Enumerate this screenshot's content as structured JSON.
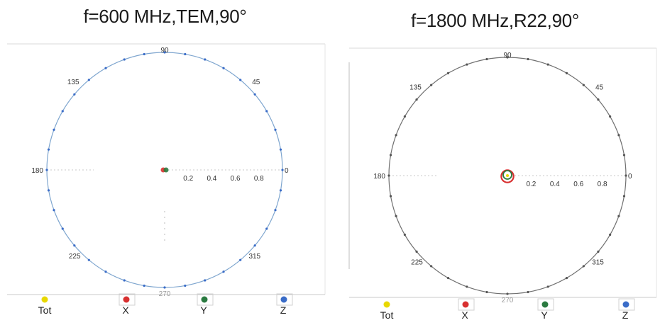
{
  "chart_data": [
    {
      "type": "polar",
      "title": "f=600 MHz,TEM,90°",
      "radial_ticks": [
        "0.2",
        "0.4",
        "0.6",
        "0.8"
      ],
      "angle_labels": [
        "0",
        "45",
        "90",
        "135",
        "180",
        "225",
        "270",
        "315"
      ],
      "rlim": [
        0,
        1
      ],
      "legend": [
        "Tot",
        "X",
        "Y",
        "Z"
      ],
      "series": [
        {
          "name": "Tot",
          "color": "#e8d800",
          "r": 0.02
        },
        {
          "name": "X",
          "color": "#d83030",
          "r": 0.02
        },
        {
          "name": "Y",
          "color": "#2a7a40",
          "r": 0.03
        },
        {
          "name": "Z",
          "color": "#3a6cc8",
          "r": 1.0
        }
      ]
    },
    {
      "type": "polar",
      "title": "f=1800 MHz,R22,90°",
      "radial_ticks": [
        "0.2",
        "0.4",
        "0.6",
        "0.8"
      ],
      "angle_labels": [
        "0",
        "45",
        "90",
        "135",
        "180",
        "225",
        "270",
        "315"
      ],
      "rlim": [
        0,
        1
      ],
      "legend": [
        "Tot",
        "X",
        "Y",
        "Z"
      ],
      "series": [
        {
          "name": "Tot",
          "color": "#e8d800",
          "r": 0.03
        },
        {
          "name": "X",
          "color": "#d83030",
          "r": 0.04
        },
        {
          "name": "Y",
          "color": "#2a7a40",
          "r": 0.03
        },
        {
          "name": "Z",
          "color": "#3a6cc8",
          "r": 1.0
        }
      ]
    }
  ]
}
